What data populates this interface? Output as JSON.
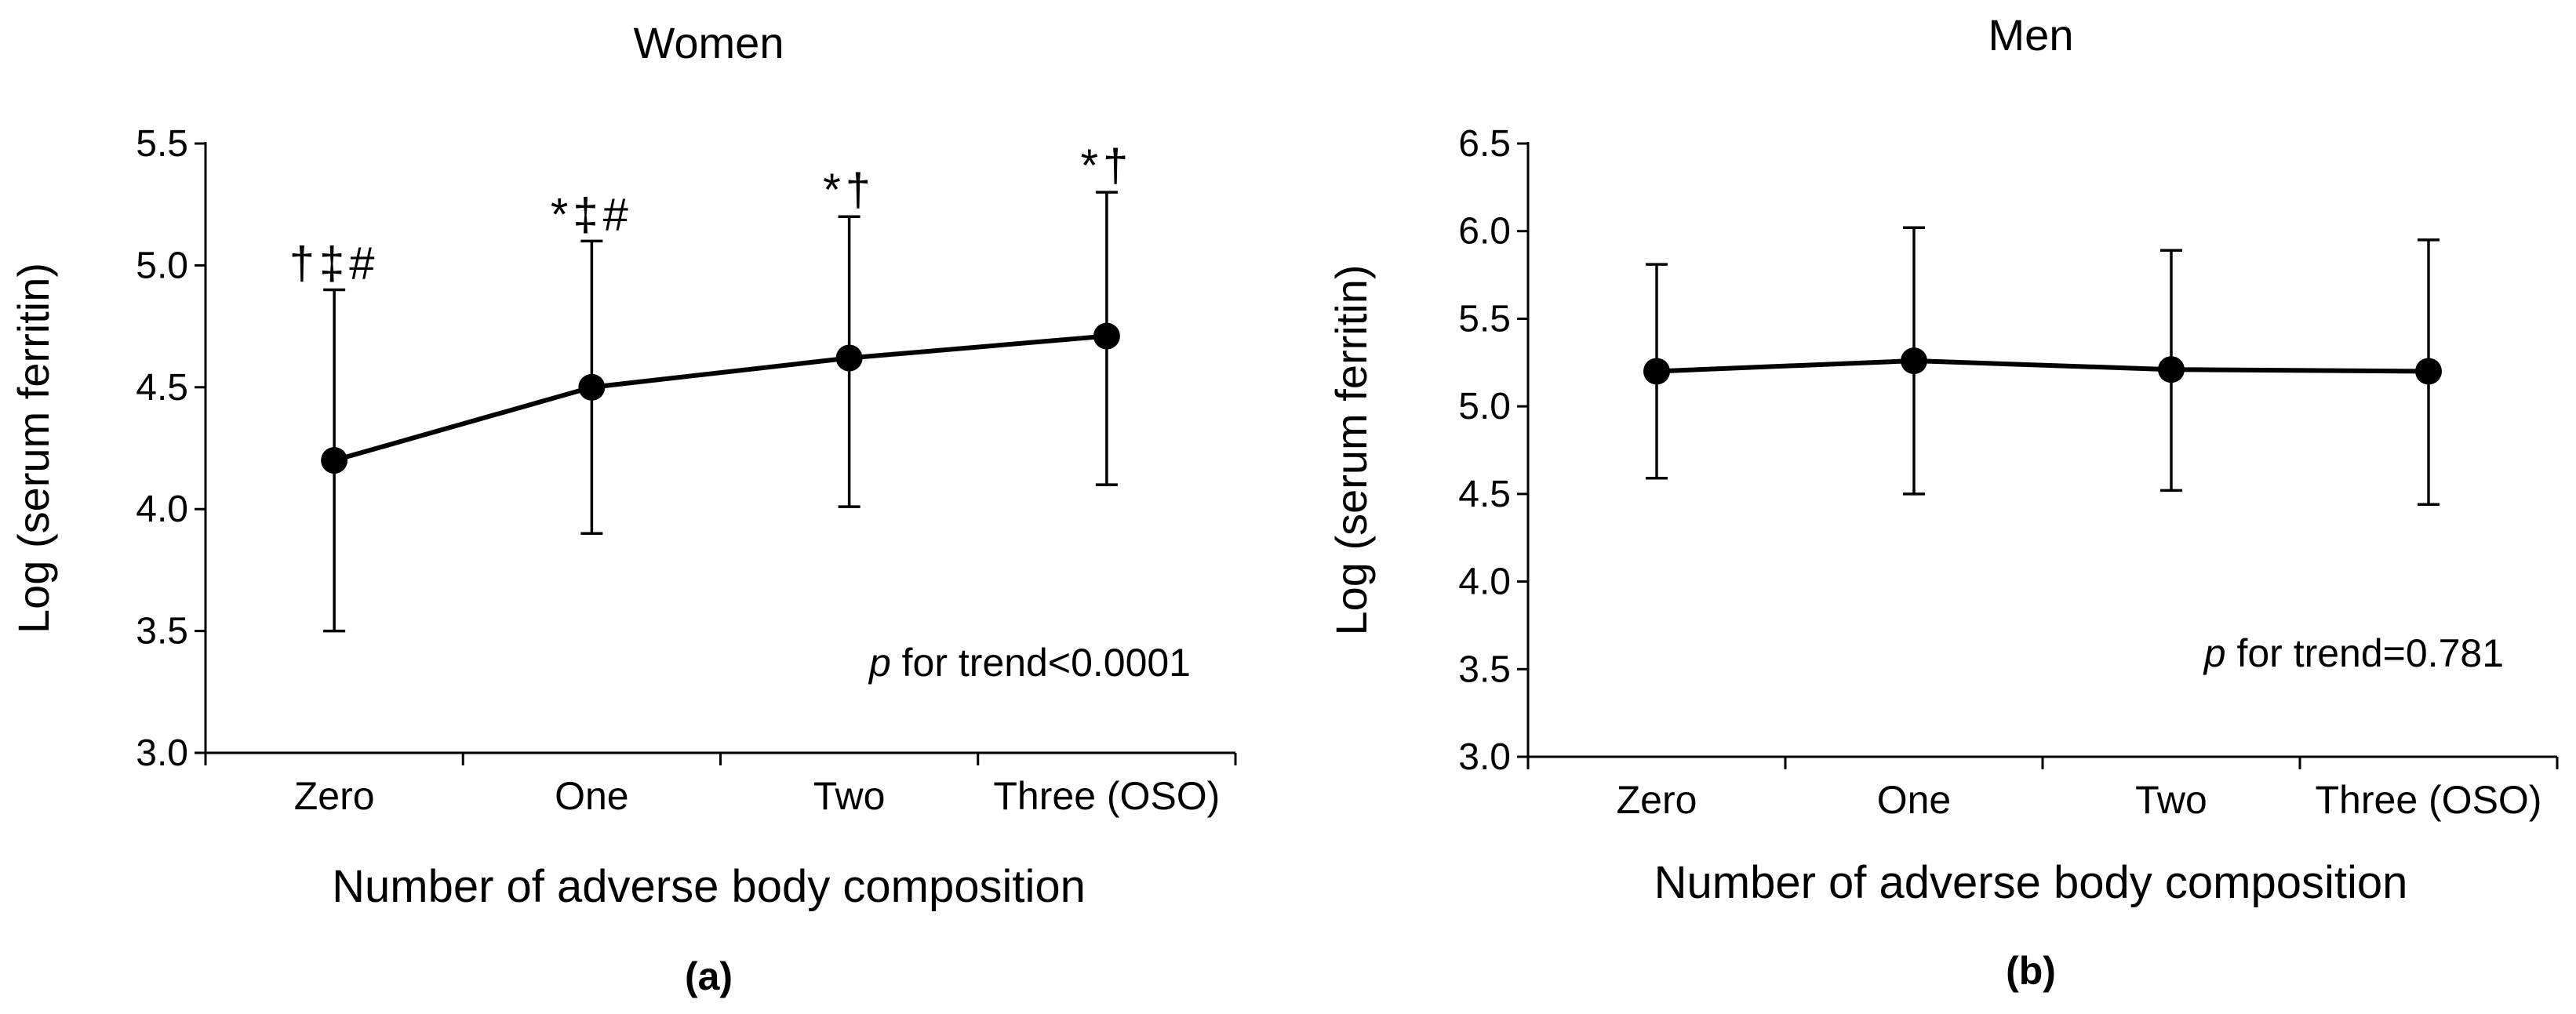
{
  "chart_data": [
    {
      "type": "line",
      "panel_label": "(a)",
      "title": "Women",
      "xlabel": "Number of adverse body composition",
      "ylabel": "Log (serum ferritin)",
      "categories": [
        "Zero",
        "One",
        "Two",
        "Three (OSO)"
      ],
      "values": [
        4.2,
        4.5,
        4.62,
        4.71
      ],
      "error_low": [
        3.5,
        3.9,
        4.01,
        4.1
      ],
      "error_high": [
        4.9,
        5.1,
        5.2,
        5.3
      ],
      "markers": [
        "†‡#",
        "*‡#",
        "*†",
        "*†"
      ],
      "ylim": [
        3.0,
        5.5
      ],
      "yticks": [
        "3.0",
        "3.5",
        "4.0",
        "4.5",
        "5.0",
        "5.5"
      ],
      "annotation": {
        "italic": "p",
        "text": " for trend<0.0001"
      },
      "grid": false
    },
    {
      "type": "line",
      "panel_label": "(b)",
      "title": "Men",
      "xlabel": "Number of adverse body composition",
      "ylabel": "Log (serum ferritin)",
      "categories": [
        "Zero",
        "One",
        "Two",
        "Three (OSO)"
      ],
      "values": [
        5.2,
        5.26,
        5.21,
        5.2
      ],
      "error_low": [
        4.59,
        4.5,
        4.52,
        4.44
      ],
      "error_high": [
        5.81,
        6.02,
        5.89,
        5.95
      ],
      "markers": [
        "",
        "",
        "",
        ""
      ],
      "ylim": [
        3.0,
        6.5
      ],
      "yticks": [
        "3.0",
        "3.5",
        "4.0",
        "4.5",
        "5.0",
        "5.5",
        "6.0",
        "6.5"
      ],
      "annotation": {
        "italic": "p",
        "text": " for trend=0.781"
      },
      "grid": false
    }
  ]
}
